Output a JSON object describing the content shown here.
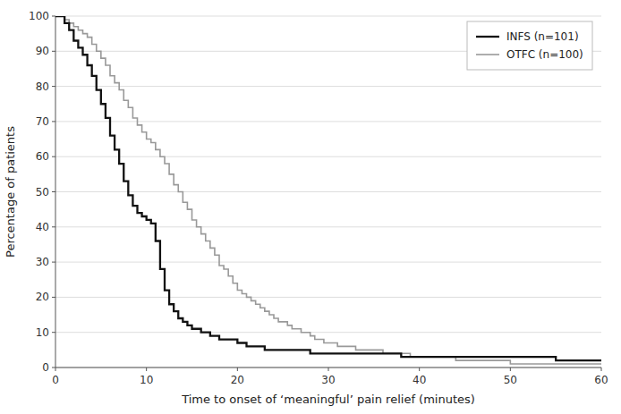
{
  "chart_data": {
    "type": "step",
    "xlabel": "Time to onset of ‘meaningful’ pain relief (minutes)",
    "ylabel": "Percentage of patients",
    "series": [
      {
        "name": "INFS (n=101)",
        "color": "#111111",
        "x": [
          0,
          0.5,
          1,
          1.5,
          2,
          2.5,
          3,
          3.5,
          4,
          4.5,
          5,
          5.5,
          6,
          6.5,
          7,
          7.5,
          8,
          8.5,
          9,
          9.5,
          10,
          10.5,
          11,
          11.5,
          12,
          12.5,
          13,
          13.5,
          14,
          14.5,
          15,
          15.5,
          16,
          17,
          18,
          19,
          20,
          21,
          22,
          23,
          24,
          25,
          26,
          27,
          28,
          30,
          32,
          35,
          38,
          40,
          45,
          50,
          55,
          60
        ],
        "values": [
          100,
          100,
          98,
          96,
          93,
          91,
          89,
          86,
          83,
          79,
          75,
          71,
          66,
          62,
          58,
          53,
          49,
          46,
          44,
          43,
          42,
          41,
          36,
          28,
          22,
          18,
          16,
          14,
          13,
          12,
          11,
          11,
          10,
          9,
          8,
          8,
          7,
          6,
          6,
          5,
          5,
          5,
          5,
          5,
          4,
          4,
          4,
          4,
          3,
          3,
          3,
          3,
          2,
          2
        ]
      },
      {
        "name": "OTFC (n=100)",
        "color": "#999999",
        "x": [
          0,
          0.5,
          1,
          1.5,
          2,
          2.5,
          3,
          3.5,
          4,
          4.5,
          5,
          5.5,
          6,
          6.5,
          7,
          7.5,
          8,
          8.5,
          9,
          9.5,
          10,
          10.5,
          11,
          11.5,
          12,
          12.5,
          13,
          13.5,
          14,
          14.5,
          15,
          15.5,
          16,
          16.5,
          17,
          17.5,
          18,
          18.5,
          19,
          19.5,
          20,
          20.5,
          21,
          21.5,
          22,
          22.5,
          23,
          23.5,
          24,
          24.5,
          25,
          25.5,
          26,
          26.5,
          27,
          27.5,
          28,
          28.5,
          29,
          29.5,
          30,
          31,
          32,
          33,
          34,
          35,
          36,
          37,
          38,
          39,
          40,
          42,
          44,
          46,
          48,
          50,
          52,
          54,
          56,
          58,
          60
        ],
        "values": [
          100,
          100,
          99,
          98,
          97,
          96,
          95,
          94,
          92,
          90,
          88,
          86,
          83,
          81,
          79,
          76,
          74,
          71,
          69,
          67,
          65,
          64,
          62,
          60,
          58,
          55,
          52,
          50,
          47,
          45,
          42,
          40,
          38,
          36,
          34,
          32,
          29,
          28,
          26,
          24,
          22,
          21,
          20,
          19,
          18,
          17,
          16,
          15,
          14,
          13,
          13,
          12,
          11,
          11,
          10,
          10,
          9,
          8,
          8,
          7,
          7,
          6,
          6,
          5,
          5,
          5,
          4,
          4,
          4,
          3,
          3,
          3,
          2,
          2,
          2,
          1,
          1,
          1,
          1,
          1,
          1
        ]
      }
    ],
    "xlim": [
      0,
      60
    ],
    "ylim": [
      0,
      100
    ],
    "xticks": [
      0,
      10,
      20,
      30,
      40,
      50,
      60
    ],
    "yticks": [
      0,
      10,
      20,
      30,
      40,
      50,
      60,
      70,
      80,
      90,
      100
    ],
    "grid": true,
    "legend": "upper right"
  }
}
